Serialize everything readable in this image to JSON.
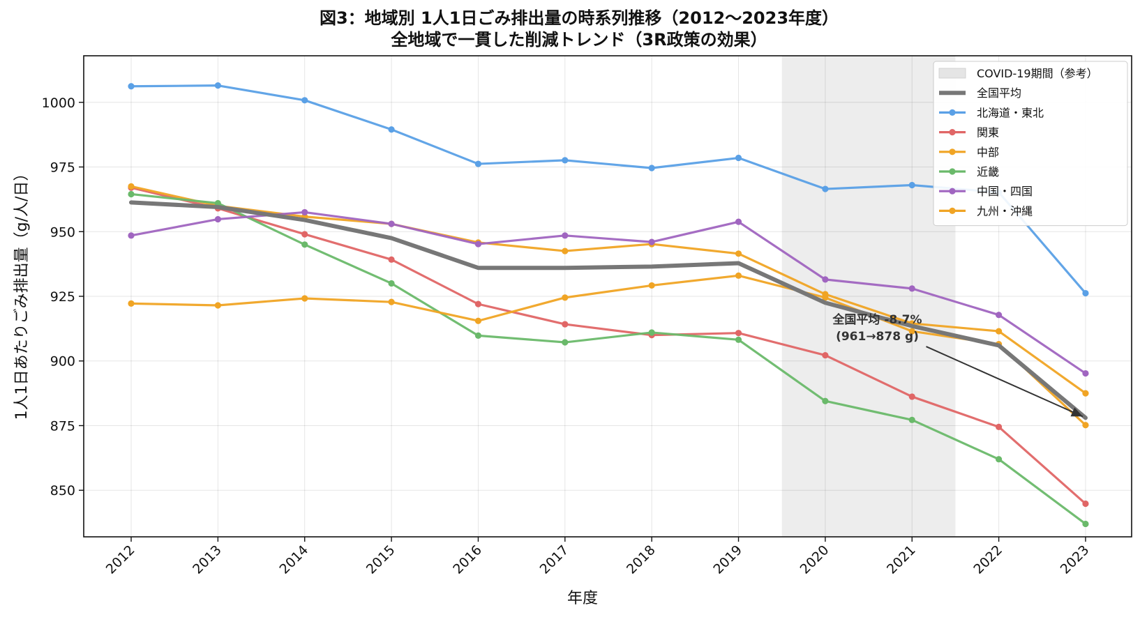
{
  "chart_data": {
    "type": "line",
    "title": "図3：地域別 1人1日ごみ排出量の時系列推移（2012〜2023年度）",
    "subtitle": "全地域で一貫した削減トレンド（3R政策の効果）",
    "xlabel": "年度",
    "ylabel": "1人1日あたりごみ排出量（g/人/日）",
    "x": [
      "2012",
      "2013",
      "2014",
      "2015",
      "2016",
      "2017",
      "2018",
      "2019",
      "2020",
      "2021",
      "2022",
      "2023"
    ],
    "ylim": [
      832,
      1018
    ],
    "yticks": [
      850,
      875,
      900,
      925,
      950,
      975,
      1000
    ],
    "grid": true,
    "legend_position": "top-right",
    "shaded_region": {
      "label": "COVID-19期間（参考）",
      "x_from": "2019.5",
      "x_to": "2021.5",
      "color": "#e5e5e5"
    },
    "series": [
      {
        "name": "全国平均",
        "color": "#777777",
        "style": "thick",
        "values": [
          961.3,
          959.5,
          954.5,
          947.5,
          936,
          936,
          936.5,
          937.8,
          922.5,
          913.5,
          906,
          878
        ]
      },
      {
        "name": "北海道・東北",
        "color": "#5aa0e6",
        "values": [
          1006.2,
          1006.5,
          1000.8,
          989.5,
          976.2,
          977.6,
          974.6,
          978.5,
          966.5,
          968.0,
          965.2,
          926.2
        ]
      },
      {
        "name": "関東",
        "color": "#e06666",
        "values": [
          967.0,
          959.0,
          949.0,
          939.2,
          922.0,
          914.2,
          910.0,
          910.8,
          902.2,
          886.2,
          874.5,
          844.8
        ]
      },
      {
        "name": "中部",
        "color": "#f0a424",
        "values": [
          967.5,
          960.0,
          955.8,
          953.0,
          945.8,
          942.5,
          945.2,
          941.5,
          925.8,
          914.5,
          911.5,
          887.5
        ]
      },
      {
        "name": "近畿",
        "color": "#6ab96a",
        "values": [
          964.5,
          961.0,
          945.0,
          930.0,
          909.8,
          907.2,
          911.0,
          908.2,
          884.5,
          877.2,
          862.0,
          837.0
        ]
      },
      {
        "name": "中国・四国",
        "color": "#a065c0",
        "values": [
          948.5,
          954.8,
          957.5,
          953.0,
          945.2,
          948.5,
          946.0,
          953.8,
          931.5,
          928.0,
          917.8,
          895.2
        ]
      },
      {
        "name": "九州・沖縄",
        "color": "#f0a424",
        "values": [
          922.2,
          921.5,
          924.2,
          922.8,
          915.5,
          924.5,
          929.2,
          933.0,
          924.5,
          911.5,
          906.5,
          875.2
        ]
      }
    ],
    "annotation": {
      "line1": "全国平均 -8.7%",
      "line2": "(961→878 g)",
      "text_at": [
        "2020.6",
        "911.5"
      ],
      "arrow_to": [
        "2023",
        "878"
      ]
    }
  }
}
